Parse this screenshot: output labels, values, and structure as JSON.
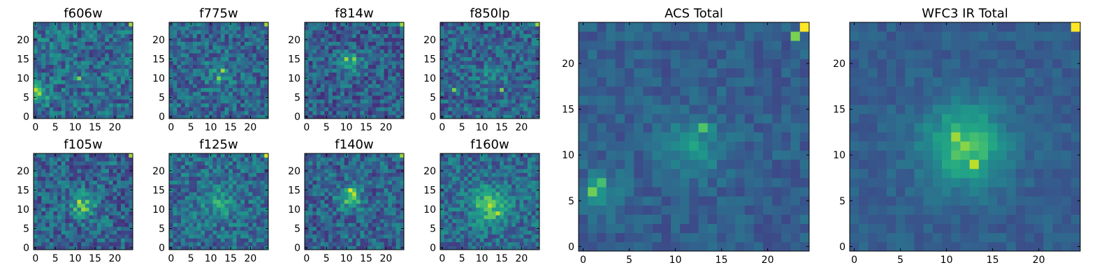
{
  "figure": {
    "title": ""
  },
  "colors": {
    "viridis_low": "#440154",
    "viridis_mid": "#21918c",
    "viridis_high": "#fde725",
    "axes": "#000000",
    "background": "#ffffff"
  },
  "chart_data": [
    {
      "type": "heatmap",
      "title": "f606w",
      "grid_shape": [
        25,
        25
      ],
      "x_ticks": [
        "0",
        "5",
        "10",
        "15",
        "20"
      ],
      "y_ticks": [
        "0",
        "5",
        "10",
        "15",
        "20"
      ],
      "xlim": [
        -0.5,
        24.5
      ],
      "ylim": [
        -0.5,
        24.5
      ],
      "colormap": "viridis",
      "seed": 11,
      "peak_points": [
        {
          "x": 0,
          "y": 7,
          "value": 0.9
        },
        {
          "x": 1,
          "y": 6,
          "value": 0.85
        },
        {
          "x": 11,
          "y": 10,
          "value": 0.8
        },
        {
          "x": 24,
          "y": 24,
          "value": 0.85
        }
      ],
      "blobs": [
        {
          "x": 1,
          "y": 6,
          "sigma": 2.0,
          "amp": 0.25
        }
      ],
      "base_level": 0.35,
      "noise": 0.32
    },
    {
      "type": "heatmap",
      "title": "f775w",
      "grid_shape": [
        25,
        25
      ],
      "x_ticks": [
        "0",
        "5",
        "10",
        "15",
        "20"
      ],
      "y_ticks": [
        "0",
        "5",
        "10",
        "15",
        "20"
      ],
      "xlim": [
        -0.5,
        24.5
      ],
      "ylim": [
        -0.5,
        24.5
      ],
      "colormap": "viridis",
      "seed": 23,
      "peak_points": [
        {
          "x": 13,
          "y": 12,
          "value": 0.85
        },
        {
          "x": 12,
          "y": 10,
          "value": 0.8
        },
        {
          "x": 24,
          "y": 24,
          "value": 0.85
        }
      ],
      "blobs": [
        {
          "x": 12,
          "y": 11,
          "sigma": 2.5,
          "amp": 0.15
        }
      ],
      "base_level": 0.33,
      "noise": 0.3
    },
    {
      "type": "heatmap",
      "title": "f814w",
      "grid_shape": [
        25,
        25
      ],
      "x_ticks": [
        "0",
        "5",
        "10",
        "15",
        "20"
      ],
      "y_ticks": [
        "0",
        "5",
        "10",
        "15",
        "20"
      ],
      "xlim": [
        -0.5,
        24.5
      ],
      "ylim": [
        -0.5,
        24.5
      ],
      "colormap": "viridis",
      "seed": 37,
      "peak_points": [
        {
          "x": 10,
          "y": 15,
          "value": 0.85
        },
        {
          "x": 12,
          "y": 15,
          "value": 0.8
        },
        {
          "x": 24,
          "y": 24,
          "value": 0.85
        }
      ],
      "blobs": [
        {
          "x": 11,
          "y": 14,
          "sigma": 2.0,
          "amp": 0.25
        }
      ],
      "base_level": 0.3,
      "noise": 0.3
    },
    {
      "type": "heatmap",
      "title": "f850lp",
      "grid_shape": [
        25,
        25
      ],
      "x_ticks": [
        "0",
        "5",
        "10",
        "15",
        "20"
      ],
      "y_ticks": [
        "0",
        "5",
        "10",
        "15",
        "20"
      ],
      "xlim": [
        -0.5,
        24.5
      ],
      "ylim": [
        -0.5,
        24.5
      ],
      "colormap": "viridis",
      "seed": 41,
      "peak_points": [
        {
          "x": 3,
          "y": 7,
          "value": 0.8
        },
        {
          "x": 15,
          "y": 7,
          "value": 0.8
        },
        {
          "x": 24,
          "y": 24,
          "value": 0.85
        }
      ],
      "blobs": [
        {
          "x": 13,
          "y": 11,
          "sigma": 2.5,
          "amp": 0.12
        }
      ],
      "base_level": 0.32,
      "noise": 0.3
    },
    {
      "type": "heatmap",
      "title": "f105w",
      "grid_shape": [
        25,
        25
      ],
      "x_ticks": [
        "0",
        "5",
        "10",
        "15",
        "20"
      ],
      "y_ticks": [
        "0",
        "5",
        "10",
        "15",
        "20"
      ],
      "xlim": [
        -0.5,
        24.5
      ],
      "ylim": [
        -0.5,
        24.5
      ],
      "colormap": "viridis",
      "seed": 53,
      "peak_points": [
        {
          "x": 11,
          "y": 12,
          "value": 0.9
        },
        {
          "x": 12,
          "y": 10,
          "value": 0.85
        },
        {
          "x": 24,
          "y": 24,
          "value": 0.85
        }
      ],
      "blobs": [
        {
          "x": 12,
          "y": 11,
          "sigma": 2.2,
          "amp": 0.35
        }
      ],
      "base_level": 0.32,
      "noise": 0.32
    },
    {
      "type": "heatmap",
      "title": "f125w",
      "grid_shape": [
        25,
        25
      ],
      "x_ticks": [
        "0",
        "5",
        "10",
        "15",
        "20"
      ],
      "y_ticks": [
        "0",
        "5",
        "10",
        "15",
        "20"
      ],
      "xlim": [
        -0.5,
        24.5
      ],
      "ylim": [
        -0.5,
        24.5
      ],
      "colormap": "viridis",
      "seed": 67,
      "peak_points": [
        {
          "x": 24,
          "y": 24,
          "value": 0.95
        }
      ],
      "blobs": [
        {
          "x": 12,
          "y": 12,
          "sigma": 3.0,
          "amp": 0.2
        }
      ],
      "base_level": 0.35,
      "noise": 0.3
    },
    {
      "type": "heatmap",
      "title": "f140w",
      "grid_shape": [
        25,
        25
      ],
      "x_ticks": [
        "0",
        "5",
        "10",
        "15",
        "20"
      ],
      "y_ticks": [
        "0",
        "5",
        "10",
        "15",
        "20"
      ],
      "xlim": [
        -0.5,
        24.5
      ],
      "ylim": [
        -0.5,
        24.5
      ],
      "colormap": "viridis",
      "seed": 79,
      "peak_points": [
        {
          "x": 11,
          "y": 15,
          "value": 0.95
        },
        {
          "x": 12,
          "y": 14,
          "value": 0.9
        },
        {
          "x": 24,
          "y": 24,
          "value": 0.85
        }
      ],
      "blobs": [
        {
          "x": 11,
          "y": 13,
          "sigma": 2.0,
          "amp": 0.4
        }
      ],
      "base_level": 0.32,
      "noise": 0.3
    },
    {
      "type": "heatmap",
      "title": "f160w",
      "grid_shape": [
        25,
        25
      ],
      "x_ticks": [
        "0",
        "5",
        "10",
        "15",
        "20"
      ],
      "y_ticks": [
        "0",
        "5",
        "10",
        "15",
        "20"
      ],
      "xlim": [
        -0.5,
        24.5
      ],
      "ylim": [
        -0.5,
        24.5
      ],
      "colormap": "viridis",
      "seed": 97,
      "peak_points": [
        {
          "x": 12,
          "y": 11,
          "value": 0.9
        },
        {
          "x": 14,
          "y": 9,
          "value": 0.9
        }
      ],
      "blobs": [
        {
          "x": 12,
          "y": 11,
          "sigma": 3.0,
          "amp": 0.4
        }
      ],
      "base_level": 0.35,
      "noise": 0.28
    },
    {
      "type": "heatmap",
      "title": "ACS Total",
      "grid_shape": [
        25,
        25
      ],
      "x_ticks": [
        "0",
        "5",
        "10",
        "15",
        "20"
      ],
      "y_ticks": [
        "0",
        "5",
        "10",
        "15",
        "20"
      ],
      "xlim": [
        -0.5,
        24.5
      ],
      "ylim": [
        -0.5,
        24.5
      ],
      "colormap": "viridis",
      "seed": 131,
      "peak_points": [
        {
          "x": 24,
          "y": 24,
          "value": 1.0
        },
        {
          "x": 23,
          "y": 23,
          "value": 0.8
        },
        {
          "x": 1,
          "y": 6,
          "value": 0.78
        },
        {
          "x": 2,
          "y": 7,
          "value": 0.7
        },
        {
          "x": 13,
          "y": 13,
          "value": 0.72
        }
      ],
      "blobs": [
        {
          "x": 12,
          "y": 11,
          "sigma": 2.3,
          "amp": 0.22
        },
        {
          "x": 2,
          "y": 6,
          "sigma": 1.5,
          "amp": 0.2
        }
      ],
      "base_level": 0.3,
      "noise": 0.14
    },
    {
      "type": "heatmap",
      "title": "WFC3 IR Total",
      "grid_shape": [
        25,
        25
      ],
      "x_ticks": [
        "0",
        "5",
        "10",
        "15",
        "20"
      ],
      "y_ticks": [
        "0",
        "5",
        "10",
        "15",
        "20"
      ],
      "xlim": [
        -0.5,
        24.5
      ],
      "ylim": [
        -0.5,
        24.5
      ],
      "colormap": "viridis",
      "seed": 173,
      "peak_points": [
        {
          "x": 24,
          "y": 24,
          "value": 1.0
        },
        {
          "x": 13,
          "y": 9,
          "value": 0.9
        },
        {
          "x": 11,
          "y": 12,
          "value": 0.85
        },
        {
          "x": 12,
          "y": 11,
          "value": 0.82
        }
      ],
      "blobs": [
        {
          "x": 12,
          "y": 11,
          "sigma": 3.0,
          "amp": 0.42
        }
      ],
      "base_level": 0.3,
      "noise": 0.1
    }
  ]
}
